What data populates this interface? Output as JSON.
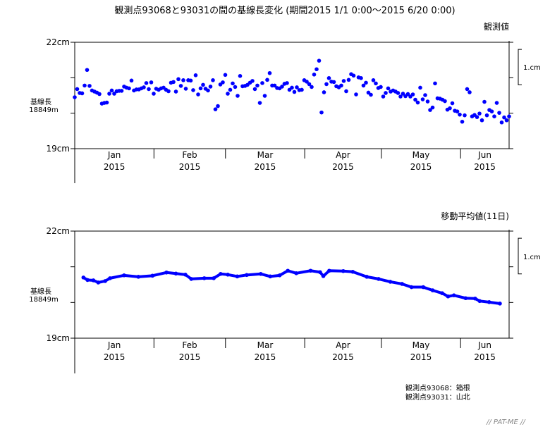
{
  "chart_data": {
    "title": "観測点93068と93031の間の基線長変化 (期間2015 1/1 0:00〜2015 6/20 0:00)",
    "x_range_days": [
      0,
      170
    ],
    "months": [
      {
        "label": "Jan",
        "year": "2015",
        "start_day": 0,
        "end_day": 31
      },
      {
        "label": "Feb",
        "year": "2015",
        "start_day": 31,
        "end_day": 59
      },
      {
        "label": "Mar",
        "year": "2015",
        "start_day": 59,
        "end_day": 90
      },
      {
        "label": "Apr",
        "year": "2015",
        "start_day": 90,
        "end_day": 120
      },
      {
        "label": "May",
        "year": "2015",
        "start_day": 120,
        "end_day": 151
      },
      {
        "label": "Jun",
        "year": "2015",
        "start_day": 151,
        "end_day": 170
      }
    ],
    "charts": [
      {
        "name": "observed",
        "type": "scatter",
        "panel_title": "観測値",
        "ylabel": "基線長",
        "ylabel_sub": "18849m",
        "ytick_top": "22cm",
        "ytick_bottom": "19cm",
        "ylim": [
          19,
          22
        ],
        "scale_label": "1.cm",
        "color": "#0000ff",
        "values": [
          20.45,
          20.68,
          20.57,
          20.56,
          20.78,
          21.22,
          20.77,
          20.64,
          20.61,
          20.58,
          20.54,
          20.27,
          20.29,
          20.3,
          20.55,
          20.64,
          20.55,
          20.62,
          20.63,
          20.63,
          20.75,
          20.72,
          20.7,
          20.92,
          20.64,
          20.67,
          20.67,
          20.7,
          20.73,
          20.85,
          20.68,
          20.87,
          20.55,
          20.69,
          20.66,
          20.7,
          20.72,
          20.66,
          20.62,
          20.86,
          20.88,
          20.61,
          20.96,
          20.77,
          20.93,
          20.69,
          20.93,
          20.92,
          20.65,
          21.07,
          20.53,
          20.7,
          20.8,
          20.69,
          20.64,
          20.75,
          20.93,
          20.11,
          20.2,
          20.81,
          20.87,
          21.08,
          20.55,
          20.66,
          20.84,
          20.74,
          20.49,
          21.05,
          20.76,
          20.77,
          20.8,
          20.86,
          20.91,
          20.68,
          20.78,
          20.29,
          20.85,
          20.49,
          20.94,
          21.13,
          20.78,
          20.78,
          20.71,
          20.7,
          20.75,
          20.83,
          20.85,
          20.66,
          20.72,
          20.6,
          20.73,
          20.65,
          20.66,
          20.93,
          20.89,
          20.82,
          20.74,
          21.09,
          21.24,
          21.48,
          20.02,
          20.59,
          20.82,
          20.99,
          20.89,
          20.88,
          20.76,
          20.73,
          20.78,
          20.91,
          20.62,
          20.94,
          21.1,
          21.06,
          20.53,
          21.01,
          20.99,
          20.78,
          20.86,
          20.58,
          20.52,
          20.93,
          20.84,
          20.71,
          20.74,
          20.47,
          20.57,
          20.7,
          20.61,
          20.64,
          20.61,
          20.57,
          20.47,
          20.55,
          20.48,
          20.54,
          20.47,
          20.53,
          20.38,
          20.3,
          20.72,
          20.39,
          20.51,
          20.33,
          20.09,
          20.16,
          20.84,
          20.42,
          20.41,
          20.38,
          20.34,
          20.1,
          20.14,
          20.28,
          20.07,
          20.05,
          19.96,
          19.76,
          19.94,
          20.68,
          20.59,
          19.91,
          19.95,
          19.89,
          19.99,
          19.8,
          20.32,
          19.94,
          20.09,
          20.05,
          19.91,
          20.29,
          20.01,
          19.74,
          19.88,
          19.8,
          19.91
        ]
      },
      {
        "name": "moving-average",
        "type": "line",
        "panel_title": "移動平均値(11日)",
        "ylabel": "基線長",
        "ylabel_sub": "18849m",
        "ytick_top": "22cm",
        "ytick_bottom": "19cm",
        "ylim": [
          19,
          22
        ],
        "scale_label": "1.cm",
        "color": "#0000ff",
        "points": [
          [
            3.4,
            20.7
          ],
          [
            5.0,
            20.63
          ],
          [
            7.3,
            20.62
          ],
          [
            9.2,
            20.56
          ],
          [
            11.9,
            20.6
          ],
          [
            13.8,
            20.68
          ],
          [
            19.3,
            20.76
          ],
          [
            24.9,
            20.72
          ],
          [
            30.4,
            20.75
          ],
          [
            35.9,
            20.84
          ],
          [
            39.6,
            20.81
          ],
          [
            43.3,
            20.78
          ],
          [
            45.6,
            20.66
          ],
          [
            50.7,
            20.68
          ],
          [
            54.4,
            20.68
          ],
          [
            57.1,
            20.8
          ],
          [
            59.9,
            20.78
          ],
          [
            63.6,
            20.73
          ],
          [
            67.3,
            20.77
          ],
          [
            72.8,
            20.8
          ],
          [
            76.5,
            20.73
          ],
          [
            80.2,
            20.76
          ],
          [
            83.4,
            20.89
          ],
          [
            86.7,
            20.82
          ],
          [
            92.3,
            20.89
          ],
          [
            96.0,
            20.85
          ],
          [
            97.3,
            20.74
          ],
          [
            99.6,
            20.89
          ],
          [
            105.1,
            20.88
          ],
          [
            108.8,
            20.86
          ],
          [
            114.3,
            20.72
          ],
          [
            118.9,
            20.66
          ],
          [
            123.5,
            20.58
          ],
          [
            128.1,
            20.52
          ],
          [
            131.8,
            20.43
          ],
          [
            136.4,
            20.43
          ],
          [
            140.1,
            20.34
          ],
          [
            143.8,
            20.26
          ],
          [
            146.1,
            20.17
          ],
          [
            148.4,
            20.2
          ],
          [
            153.0,
            20.12
          ],
          [
            156.7,
            20.11
          ],
          [
            158.5,
            20.04
          ],
          [
            162.2,
            20.01
          ],
          [
            166.4,
            19.97
          ]
        ]
      }
    ],
    "legend": [
      "観測点93068：箱根",
      "観測点93031：山北"
    ],
    "logo": "// PAT-ME //"
  }
}
